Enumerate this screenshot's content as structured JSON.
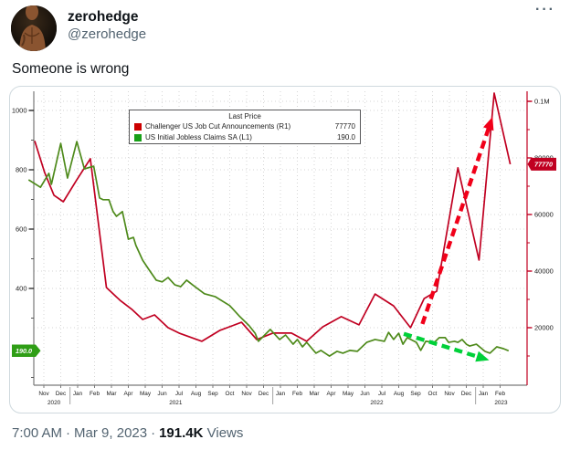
{
  "tweet": {
    "author": "zerohedge",
    "handle": "@zerohedge",
    "more_label": "···",
    "text": "Someone is wrong",
    "footer": {
      "time": "7:00 AM",
      "sep": "·",
      "date": "Mar 9, 2023",
      "views_count": "191.4K",
      "views_label": "Views"
    }
  },
  "colors": {
    "text_primary": "#0f1419",
    "text_secondary": "#536471",
    "card_border": "#cfd9de",
    "red_line": "#c00021",
    "green_line": "#4e8a1b",
    "red_arrow": "#f10019",
    "green_arrow": "#00d139",
    "green_badge": "#2f9e16",
    "red_badge": "#c00021",
    "grid": "#d6d6d6",
    "axis_gray": "#7a7a7a"
  },
  "chart_data": {
    "type": "line",
    "legend": {
      "title": "Last Price"
    },
    "x_axis": {
      "months": [
        "Nov",
        "Dec",
        "Jan",
        "Feb",
        "Mar",
        "Apr",
        "May",
        "Jun",
        "Jul",
        "Aug",
        "Sep",
        "Oct",
        "Nov",
        "Dec",
        "Jan",
        "Feb",
        "Mar",
        "Apr",
        "May",
        "Jun",
        "Jul",
        "Aug",
        "Sep",
        "Oct",
        "Nov",
        "Dec",
        "Jan",
        "Feb"
      ],
      "start_month": "Nov 2020",
      "end_month": "Feb 2023",
      "years": [
        {
          "label": "2020",
          "m": 0.6
        },
        {
          "label": "2021",
          "m": 7.8
        },
        {
          "label": "2022",
          "m": 19.7
        },
        {
          "label": "2023",
          "m": 27.05
        }
      ],
      "separators_m": [
        1.55,
        13.55,
        25.55
      ]
    },
    "left_axis": {
      "units": "thousands of claims",
      "ticks": [
        {
          "v": 1000,
          "label": "1000"
        },
        {
          "v": 800,
          "label": "800"
        },
        {
          "v": 600,
          "label": "600"
        },
        {
          "v": 400,
          "label": "400"
        }
      ],
      "minor_ticks": [
        900,
        700,
        500,
        300,
        100
      ],
      "last_price_label": "190.0",
      "last_price_value": 190.0
    },
    "right_axis": {
      "units": "announcements",
      "ticks": [
        {
          "v": 100000,
          "label": "0.1M"
        },
        {
          "v": 80000,
          "label": "80000"
        },
        {
          "v": 60000,
          "label": "60000"
        },
        {
          "v": 40000,
          "label": "40000"
        },
        {
          "v": 20000,
          "label": "20000"
        }
      ],
      "minor_ticks": [
        90000,
        70000,
        50000,
        30000,
        10000
      ],
      "last_price_label": "77770",
      "last_price_value": 77770
    },
    "series": [
      {
        "name": "Challenger US Job Cut Announcements",
        "axis": "R1",
        "legend_label": "Challenger US Job Cut Announcements  (R1)",
        "legend_value": "77770",
        "color": "#c00021",
        "points": [
          [
            -0.54,
            86000
          ],
          [
            0.05,
            74800
          ],
          [
            0.6,
            66800
          ],
          [
            1.15,
            64500
          ],
          [
            1.95,
            72300
          ],
          [
            2.75,
            79700
          ],
          [
            3.7,
            34200
          ],
          [
            4.5,
            29700
          ],
          [
            5.2,
            26500
          ],
          [
            5.85,
            22900
          ],
          [
            6.55,
            24500
          ],
          [
            7.35,
            20000
          ],
          [
            8.0,
            18100
          ],
          [
            9.35,
            15200
          ],
          [
            10.4,
            19000
          ],
          [
            11.7,
            21900
          ],
          [
            12.6,
            15800
          ],
          [
            13.55,
            18100
          ],
          [
            14.65,
            18100
          ],
          [
            15.55,
            15200
          ],
          [
            16.5,
            20300
          ],
          [
            17.6,
            23900
          ],
          [
            18.65,
            21000
          ],
          [
            19.6,
            31900
          ],
          [
            20.7,
            27700
          ],
          [
            21.7,
            20000
          ],
          [
            22.5,
            30300
          ],
          [
            23.25,
            32900
          ],
          [
            24.5,
            76500
          ],
          [
            25.75,
            43900
          ],
          [
            26.65,
            102900
          ],
          [
            27.6,
            77770
          ]
        ]
      },
      {
        "name": "US Initial Jobless Claims SA",
        "axis": "L1",
        "legend_label": "US Initial Jobless Claims SA  (L1)",
        "legend_value": "190.0",
        "color": "#4e8a1b",
        "points": [
          [
            -0.9,
            766
          ],
          [
            -0.2,
            741
          ],
          [
            0.3,
            788
          ],
          [
            0.45,
            751
          ],
          [
            1.0,
            889
          ],
          [
            1.4,
            772
          ],
          [
            1.95,
            895
          ],
          [
            2.4,
            803
          ],
          [
            2.95,
            812
          ],
          [
            3.3,
            705
          ],
          [
            3.5,
            699
          ],
          [
            3.85,
            699
          ],
          [
            4.1,
            659
          ],
          [
            4.3,
            643
          ],
          [
            4.65,
            659
          ],
          [
            5.0,
            566
          ],
          [
            5.3,
            572
          ],
          [
            5.45,
            545
          ],
          [
            5.85,
            495
          ],
          [
            6.2,
            465
          ],
          [
            6.65,
            428
          ],
          [
            7.0,
            422
          ],
          [
            7.35,
            437
          ],
          [
            7.75,
            412
          ],
          [
            8.1,
            406
          ],
          [
            8.45,
            428
          ],
          [
            8.8,
            412
          ],
          [
            9.5,
            382
          ],
          [
            10.15,
            372
          ],
          [
            11.0,
            342
          ],
          [
            11.6,
            305
          ],
          [
            12.15,
            274
          ],
          [
            12.5,
            249
          ],
          [
            12.7,
            222
          ],
          [
            13.4,
            262
          ],
          [
            13.95,
            228
          ],
          [
            14.3,
            243
          ],
          [
            14.75,
            212
          ],
          [
            15.0,
            228
          ],
          [
            15.3,
            203
          ],
          [
            15.55,
            218
          ],
          [
            16.1,
            182
          ],
          [
            16.4,
            191
          ],
          [
            16.9,
            172
          ],
          [
            17.35,
            188
          ],
          [
            17.7,
            182
          ],
          [
            18.1,
            191
          ],
          [
            18.55,
            188
          ],
          [
            19.1,
            218
          ],
          [
            19.6,
            228
          ],
          [
            20.15,
            222
          ],
          [
            20.4,
            252
          ],
          [
            20.7,
            228
          ],
          [
            21.0,
            249
          ],
          [
            21.25,
            212
          ],
          [
            21.5,
            234
          ],
          [
            22.05,
            218
          ],
          [
            22.3,
            191
          ],
          [
            22.6,
            222
          ],
          [
            23.1,
            218
          ],
          [
            23.4,
            234
          ],
          [
            23.75,
            234
          ],
          [
            23.95,
            218
          ],
          [
            24.3,
            222
          ],
          [
            24.5,
            218
          ],
          [
            24.75,
            228
          ],
          [
            25.0,
            212
          ],
          [
            25.2,
            206
          ],
          [
            25.6,
            212
          ],
          [
            26.1,
            188
          ],
          [
            26.4,
            182
          ],
          [
            26.8,
            203
          ],
          [
            27.2,
            197
          ],
          [
            27.5,
            190
          ]
        ]
      }
    ],
    "annotations": [
      {
        "type": "arrow",
        "axis": "R1",
        "color": "#f10019",
        "from": [
          22.4,
          21300
        ],
        "to": [
          26.55,
          94500
        ]
      },
      {
        "type": "arrow",
        "axis": "L1",
        "color": "#00d139",
        "from": [
          21.3,
          247
        ],
        "to": [
          26.35,
          158
        ]
      }
    ]
  }
}
